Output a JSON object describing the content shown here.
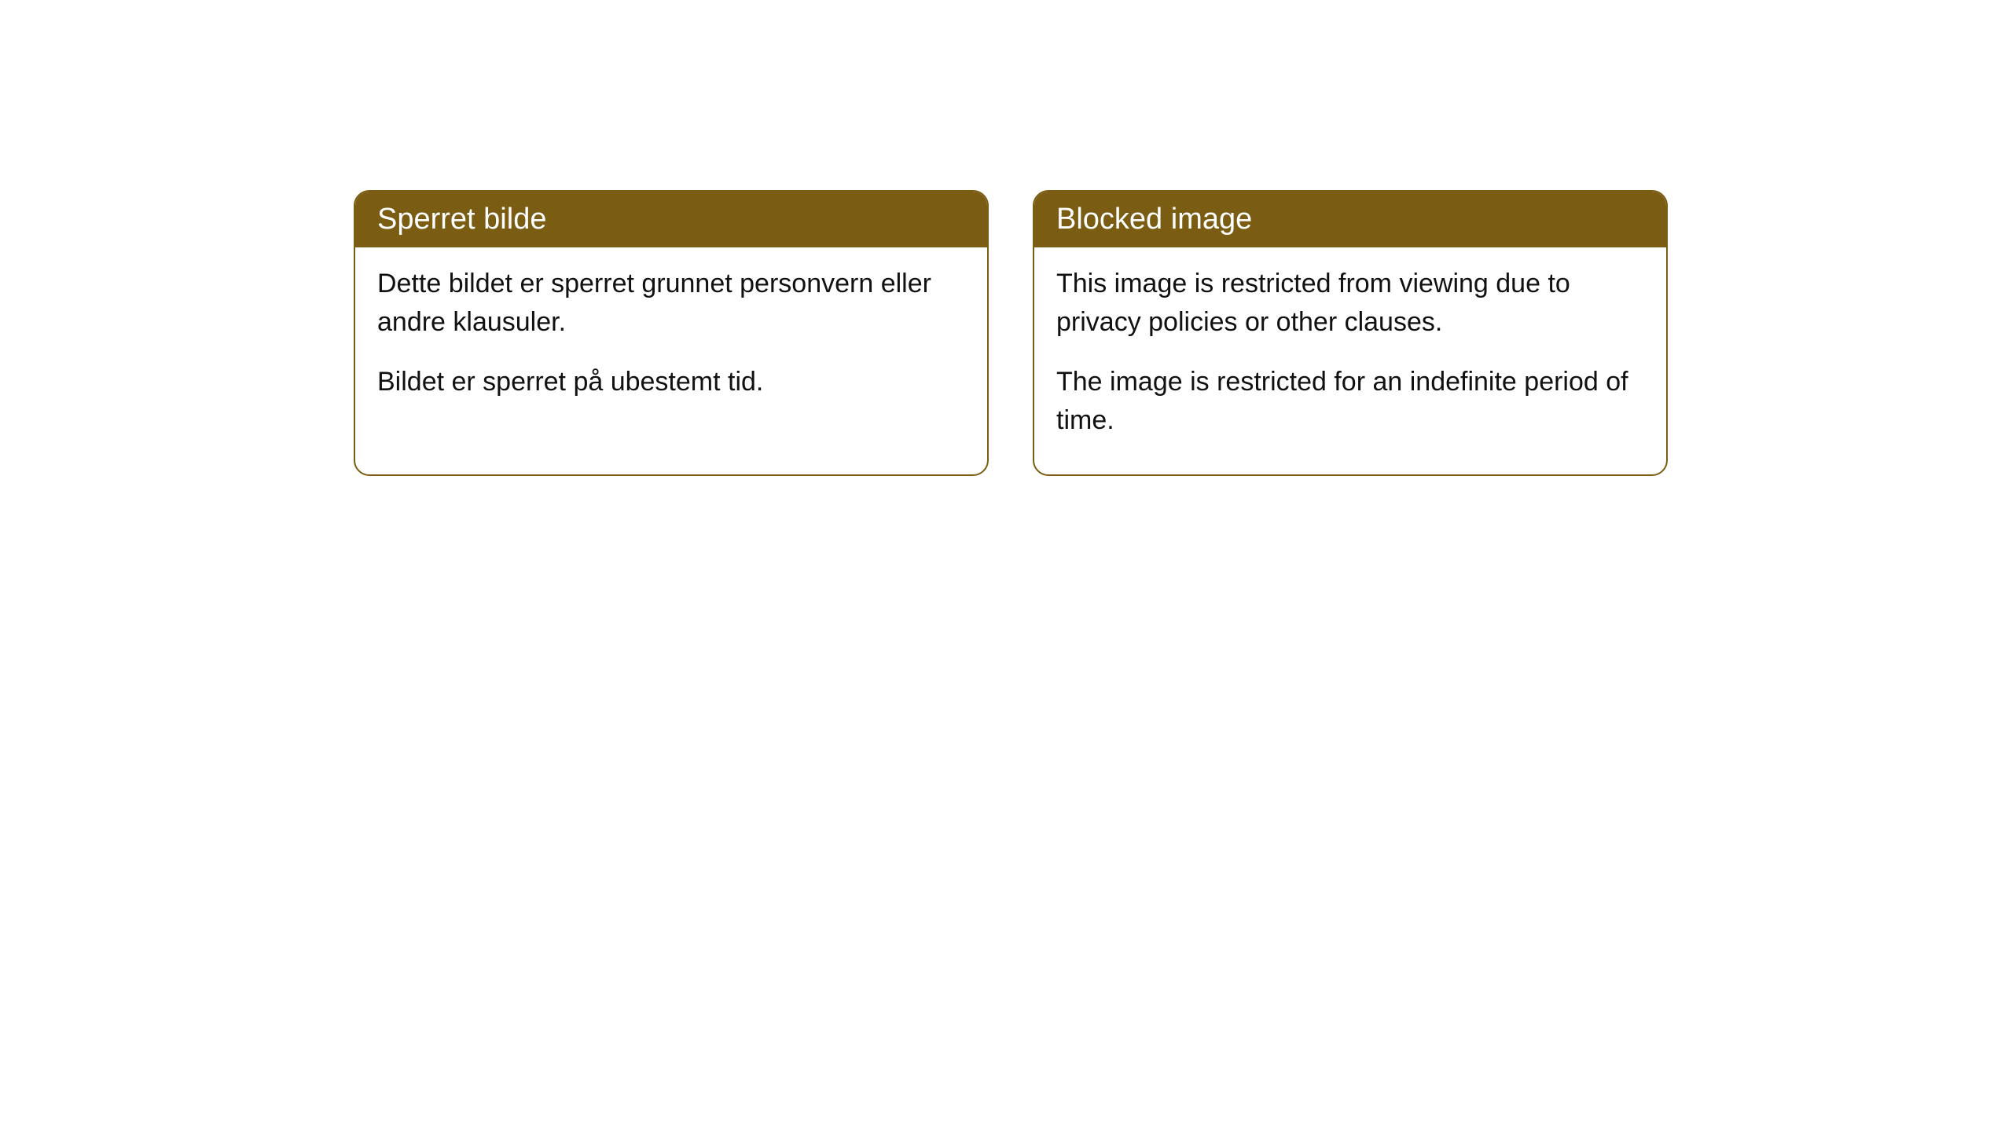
{
  "cards": [
    {
      "title": "Sperret bilde",
      "paragraph1": "Dette bildet er sperret grunnet personvern eller andre klausuler.",
      "paragraph2": "Bildet er sperret på ubestemt tid."
    },
    {
      "title": "Blocked image",
      "paragraph1": "This image is restricted from viewing due to privacy policies or other clauses.",
      "paragraph2": "The image is restricted for an indefinite period of time."
    }
  ],
  "styling": {
    "header_background": "#7a5d13",
    "header_text_color": "#ffffff",
    "border_color": "#7a5d13",
    "body_background": "#ffffff",
    "body_text_color": "#111111",
    "border_radius": 20,
    "title_fontsize": 38,
    "body_fontsize": 34
  }
}
